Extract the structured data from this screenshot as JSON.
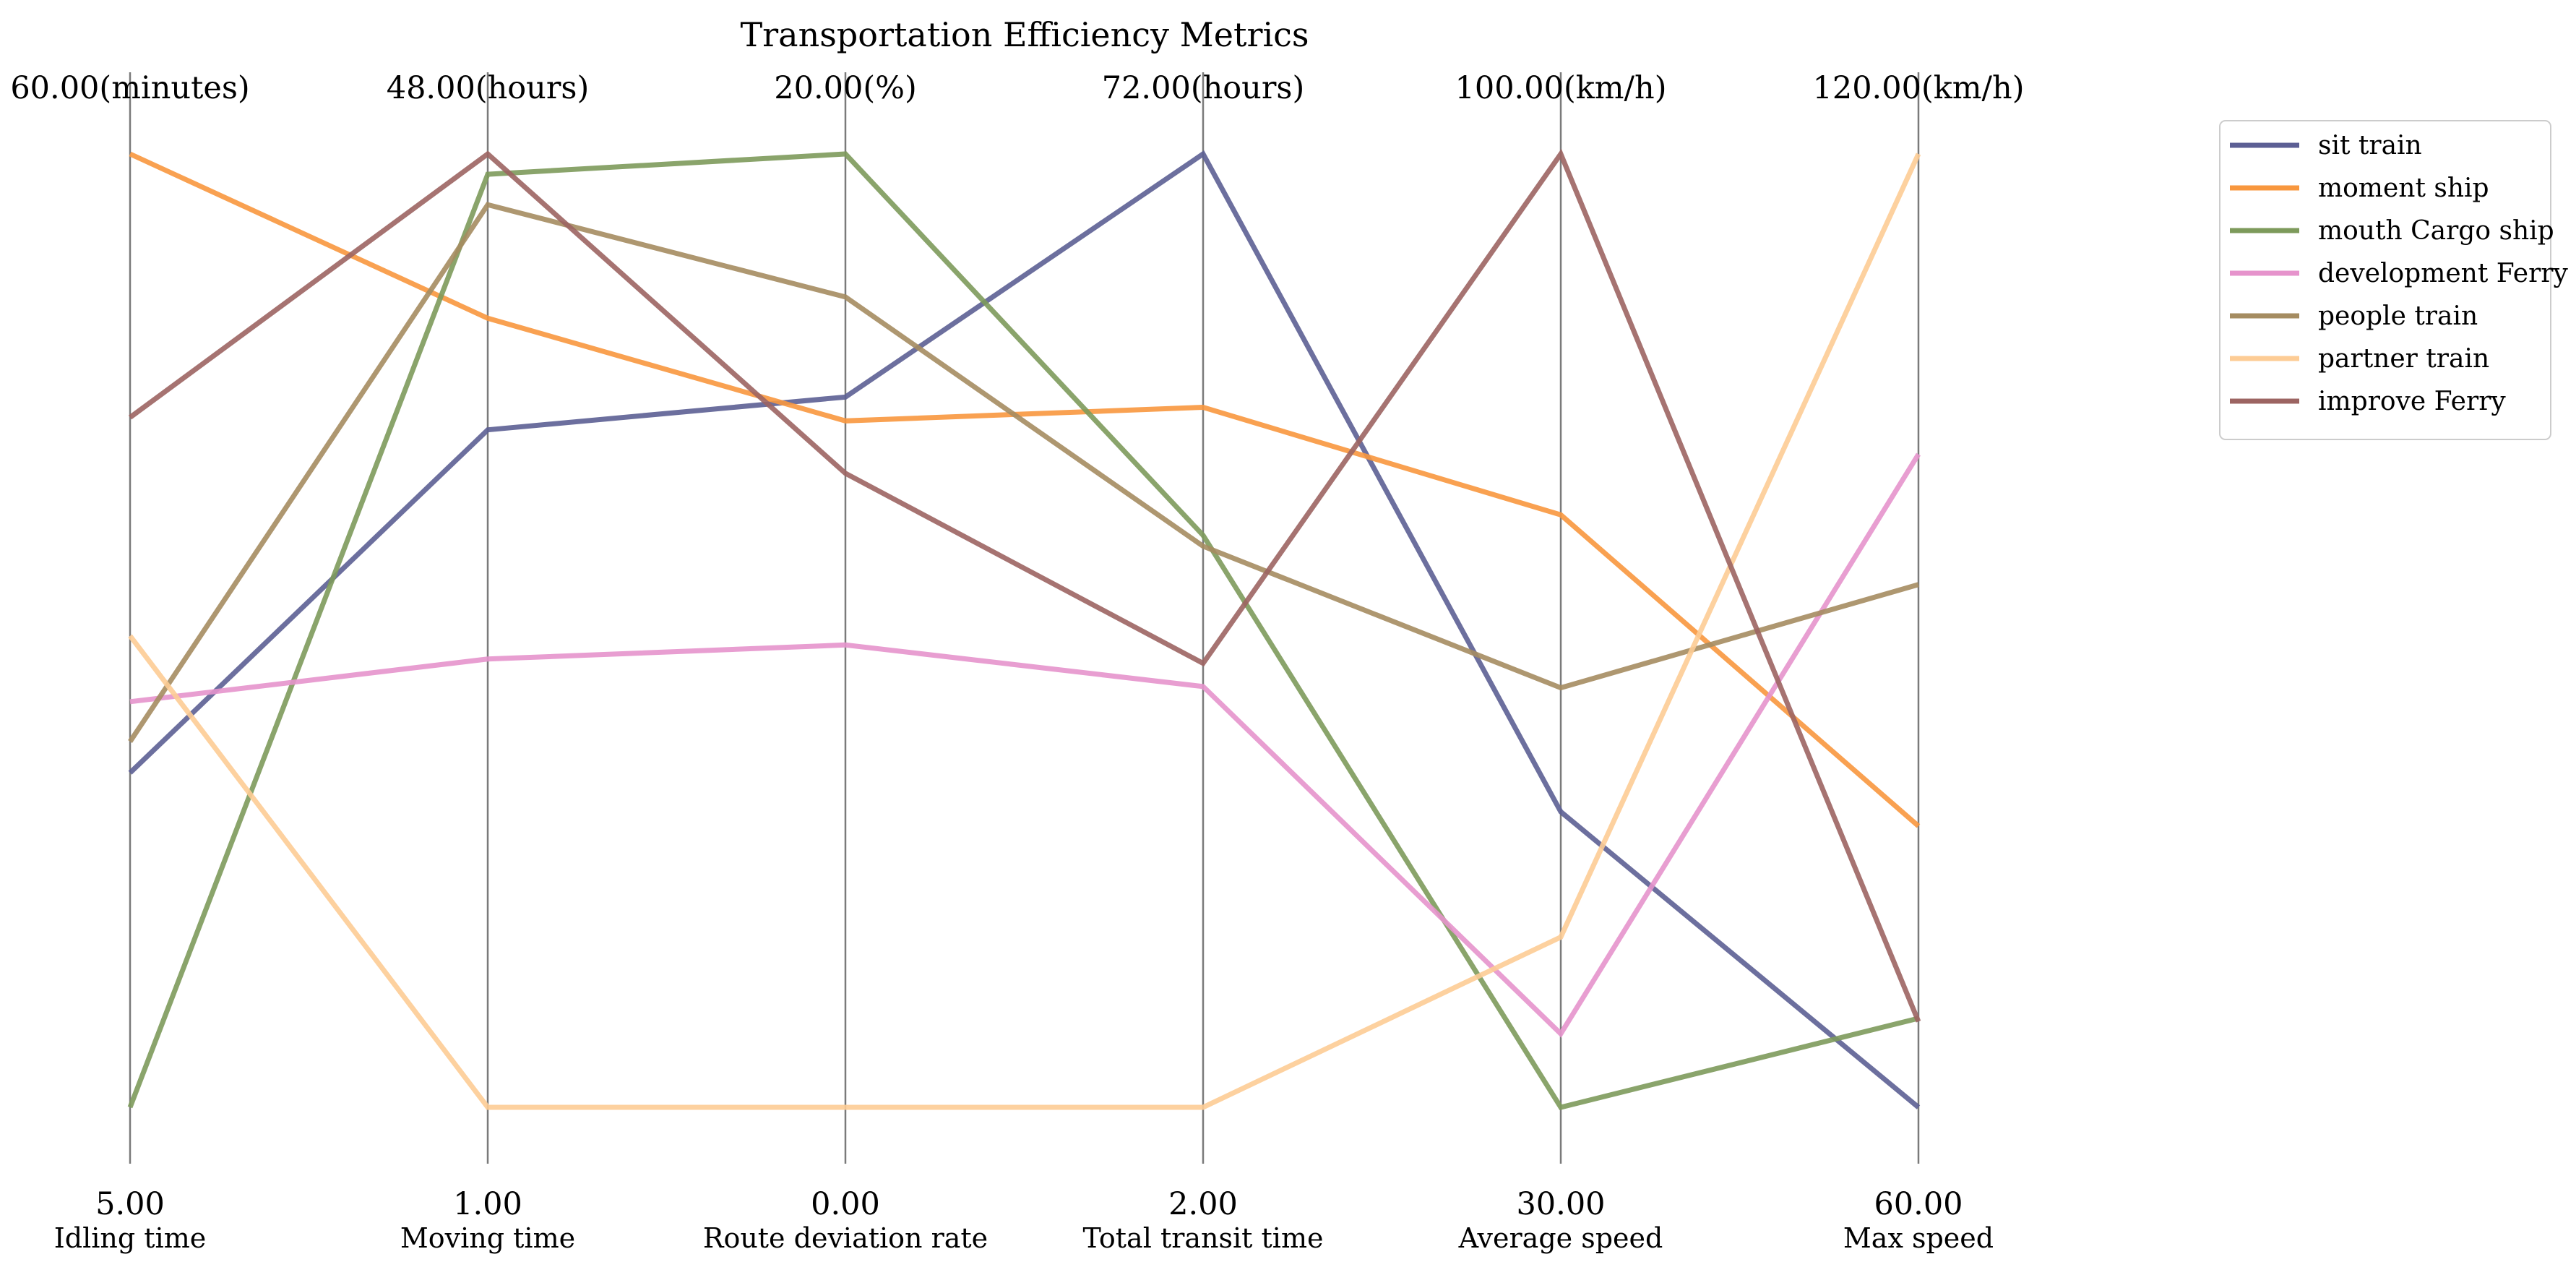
{
  "chart_data": {
    "type": "parallel-coordinates",
    "title": "Transportation Efficiency Metrics",
    "axes": [
      {
        "label": "Idling time",
        "min": 5.0,
        "max": 60.0,
        "min_label": "5.00",
        "max_label": "60.00(minutes)"
      },
      {
        "label": "Moving time",
        "min": 1.0,
        "max": 48.0,
        "min_label": "1.00",
        "max_label": "48.00(hours)"
      },
      {
        "label": "Route deviation rate",
        "min": 0.0,
        "max": 20.0,
        "min_label": "0.00",
        "max_label": "20.00(%)"
      },
      {
        "label": "Total transit time",
        "min": 2.0,
        "max": 72.0,
        "min_label": "2.00",
        "max_label": "72.00(hours)"
      },
      {
        "label": "Average speed",
        "min": 30.0,
        "max": 100.0,
        "min_label": "30.00",
        "max_label": "100.00(km/h)"
      },
      {
        "label": "Max speed",
        "min": 60.0,
        "max": 120.0,
        "min_label": "60.00",
        "max_label": "120.00(km/h)"
      }
    ],
    "series": [
      {
        "name": "sit train",
        "color": "#5c5f94",
        "values": [
          24.3,
          34.4,
          14.9,
          72.0,
          51.7,
          60.0
        ]
      },
      {
        "name": "moment ship",
        "color": "#f8973e",
        "values": [
          60.0,
          39.9,
          14.4,
          53.4,
          73.5,
          77.7
        ]
      },
      {
        "name": "mouth Cargo ship",
        "color": "#7d9a5b",
        "values": [
          5.0,
          47.0,
          20.0,
          44.0,
          30.0,
          65.6
        ]
      },
      {
        "name": "development Ferry",
        "color": "#e693cc",
        "values": [
          28.4,
          23.1,
          9.7,
          32.9,
          35.4,
          101.1
        ]
      },
      {
        "name": "people train",
        "color": "#a58c61",
        "values": [
          26.1,
          45.5,
          17.0,
          43.2,
          60.8,
          92.9
        ]
      },
      {
        "name": "partner train",
        "color": "#fdcc95",
        "values": [
          32.2,
          1.0,
          0.0,
          2.0,
          42.5,
          120.0
        ]
      },
      {
        "name": "improve Ferry",
        "color": "#9c6462",
        "values": [
          44.8,
          48.0,
          13.3,
          34.6,
          100.0,
          65.4
        ]
      }
    ]
  }
}
